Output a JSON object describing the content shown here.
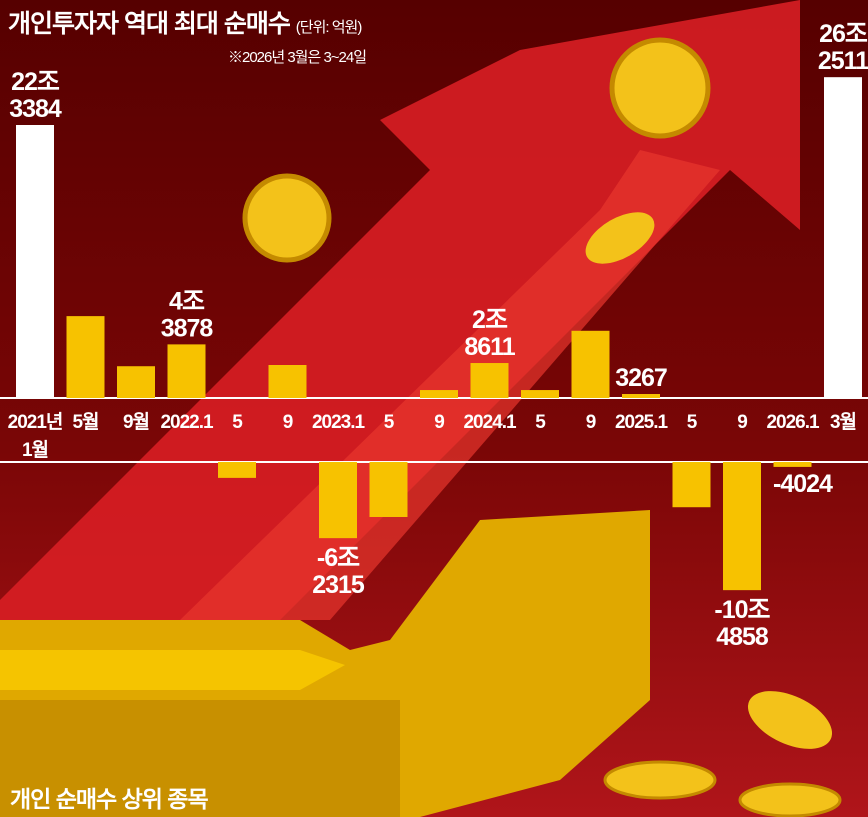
{
  "title": "개인투자자 역대 최대 순매수",
  "unit": "(단위: 억원)",
  "note": "※2026년 3월은 3~24일",
  "bottom_caption": "개인 순매수 상위 종목",
  "colors": {
    "bar": "#f7c200",
    "highlight": "#ffffff",
    "background": "#5a0000",
    "arrow": "#d81e24"
  },
  "chart_data": {
    "type": "bar",
    "title": "개인투자자 역대 최대 순매수",
    "ylabel": "억원",
    "categories": [
      "2021년 1월",
      "5월",
      "9월",
      "2022.1",
      "5",
      "9",
      "2023.1",
      "5",
      "9",
      "2024.1",
      "5",
      "9",
      "2025.1",
      "5",
      "9",
      "2026.1",
      "3월"
    ],
    "tick_labels": [
      [
        "2021년",
        "1월"
      ],
      [
        "5월"
      ],
      [
        "9월"
      ],
      [
        "2022.1"
      ],
      [
        "5"
      ],
      [
        "9"
      ],
      [
        "2023.1"
      ],
      [
        "5"
      ],
      [
        "9"
      ],
      [
        "2024.1"
      ],
      [
        "5"
      ],
      [
        "9"
      ],
      [
        "2025.1"
      ],
      [
        "5"
      ],
      [
        "9"
      ],
      [
        "2026.1"
      ],
      [
        "3월"
      ]
    ],
    "values": [
      223384,
      67000,
      26000,
      43878,
      -13000,
      27000,
      -62315,
      -45000,
      6500,
      28611,
      6500,
      55000,
      3267,
      -37000,
      -104858,
      -4024,
      262511
    ],
    "data_labels": [
      [
        "22조",
        "3384"
      ],
      null,
      null,
      [
        "4조",
        "3878"
      ],
      null,
      null,
      [
        "-6조",
        "2315"
      ],
      null,
      null,
      [
        "2조",
        "8611"
      ],
      null,
      null,
      [
        "3267"
      ],
      null,
      [
        "-10조",
        "4858"
      ],
      [
        "-4024"
      ],
      [
        "26조",
        "2511"
      ]
    ],
    "highlight": [
      0,
      16
    ]
  }
}
